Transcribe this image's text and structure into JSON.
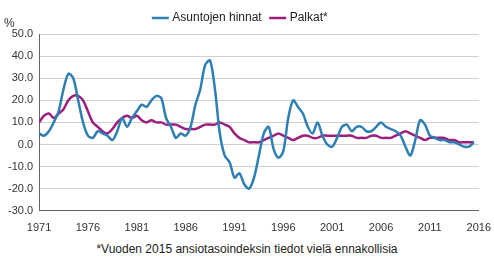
{
  "chart_data": {
    "type": "line",
    "y_label": "%",
    "caption": "*Vuoden 2015 ansiotasoindeksin tiedot vielä ennakollisia",
    "legend": "top",
    "grid": true,
    "x": [
      1971,
      1971.5,
      1972,
      1972.5,
      1973,
      1973.5,
      1974,
      1974.5,
      1975,
      1975.5,
      1976,
      1976.5,
      1977,
      1977.5,
      1978,
      1978.5,
      1979,
      1979.5,
      1980,
      1980.5,
      1981,
      1981.5,
      1982,
      1982.5,
      1983,
      1983.5,
      1984,
      1984.5,
      1985,
      1985.5,
      1986,
      1986.5,
      1987,
      1987.5,
      1988,
      1988.5,
      1989,
      1989.5,
      1990,
      1990.5,
      1991,
      1991.5,
      1992,
      1992.5,
      1993,
      1993.5,
      1994,
      1994.5,
      1995,
      1995.5,
      1996,
      1996.5,
      1997,
      1997.5,
      1998,
      1998.5,
      1999,
      1999.5,
      2000,
      2000.5,
      2001,
      2001.5,
      2002,
      2002.5,
      2003,
      2003.5,
      2004,
      2004.5,
      2005,
      2005.5,
      2006,
      2006.5,
      2007,
      2007.5,
      2008,
      2008.5,
      2009,
      2009.5,
      2010,
      2010.5,
      2011,
      2011.5,
      2012,
      2012.5,
      2013,
      2013.5,
      2014,
      2014.5,
      2015,
      2015.5
    ],
    "series": [
      {
        "name": "Asuntojen hinnat",
        "color": "#2e7fb3",
        "values": [
          5,
          4,
          6,
          10,
          15,
          25,
          32,
          30,
          20,
          10,
          4,
          3,
          6,
          5,
          4,
          2,
          6,
          12,
          8,
          12,
          15,
          18,
          17,
          20,
          22,
          21,
          12,
          8,
          3,
          5,
          4,
          8,
          18,
          25,
          36,
          38,
          25,
          5,
          -5,
          -8,
          -15,
          -13,
          -18,
          -20,
          -15,
          -5,
          5,
          8,
          -2,
          -6,
          -3,
          12,
          20,
          17,
          14,
          8,
          5,
          10,
          4,
          0,
          -1,
          3,
          8,
          9,
          6,
          8,
          8,
          6,
          6,
          8,
          10,
          8,
          7,
          6,
          4,
          -1,
          -5,
          2,
          11,
          9,
          4,
          3,
          2,
          2,
          1,
          1,
          0,
          -1,
          -1,
          1
        ]
      },
      {
        "name": "Palkat*",
        "color": "#9c1f7e",
        "values": [
          10,
          13,
          14,
          12,
          14,
          16,
          20,
          22,
          22,
          20,
          15,
          10,
          8,
          6,
          5,
          7,
          10,
          12,
          13,
          12,
          13,
          11,
          10,
          11,
          10,
          10,
          9,
          9,
          9,
          8,
          7,
          7,
          7,
          8,
          9,
          9,
          9,
          10,
          9,
          8,
          5,
          3,
          2,
          1,
          1,
          1,
          2,
          3,
          4,
          5,
          4,
          3,
          2,
          3,
          4,
          4,
          3,
          3,
          4,
          4,
          4,
          4,
          4,
          4,
          4,
          3,
          3,
          3,
          4,
          4,
          3,
          3,
          3,
          4,
          5,
          6,
          5,
          4,
          3,
          2,
          3,
          3,
          3,
          3,
          2,
          2,
          1,
          1,
          1,
          1
        ]
      }
    ],
    "xlim": [
      1971,
      2016
    ],
    "xticks": [
      1971,
      1976,
      1981,
      1986,
      1991,
      1996,
      2001,
      2006,
      2011,
      2016
    ],
    "ylim": [
      -30,
      50
    ],
    "yticks": [
      {
        "value": -30,
        "label": "-30.0"
      },
      {
        "value": -20,
        "label": "-20.0"
      },
      {
        "value": -10,
        "label": "-10.0"
      },
      {
        "value": 0,
        "label": "0.0"
      },
      {
        "value": 10,
        "label": "10.0"
      },
      {
        "value": 20,
        "label": "20.0"
      },
      {
        "value": 30,
        "label": "30.0"
      },
      {
        "value": 40,
        "label": "40.0"
      },
      {
        "value": 50,
        "label": "50.0"
      }
    ]
  }
}
